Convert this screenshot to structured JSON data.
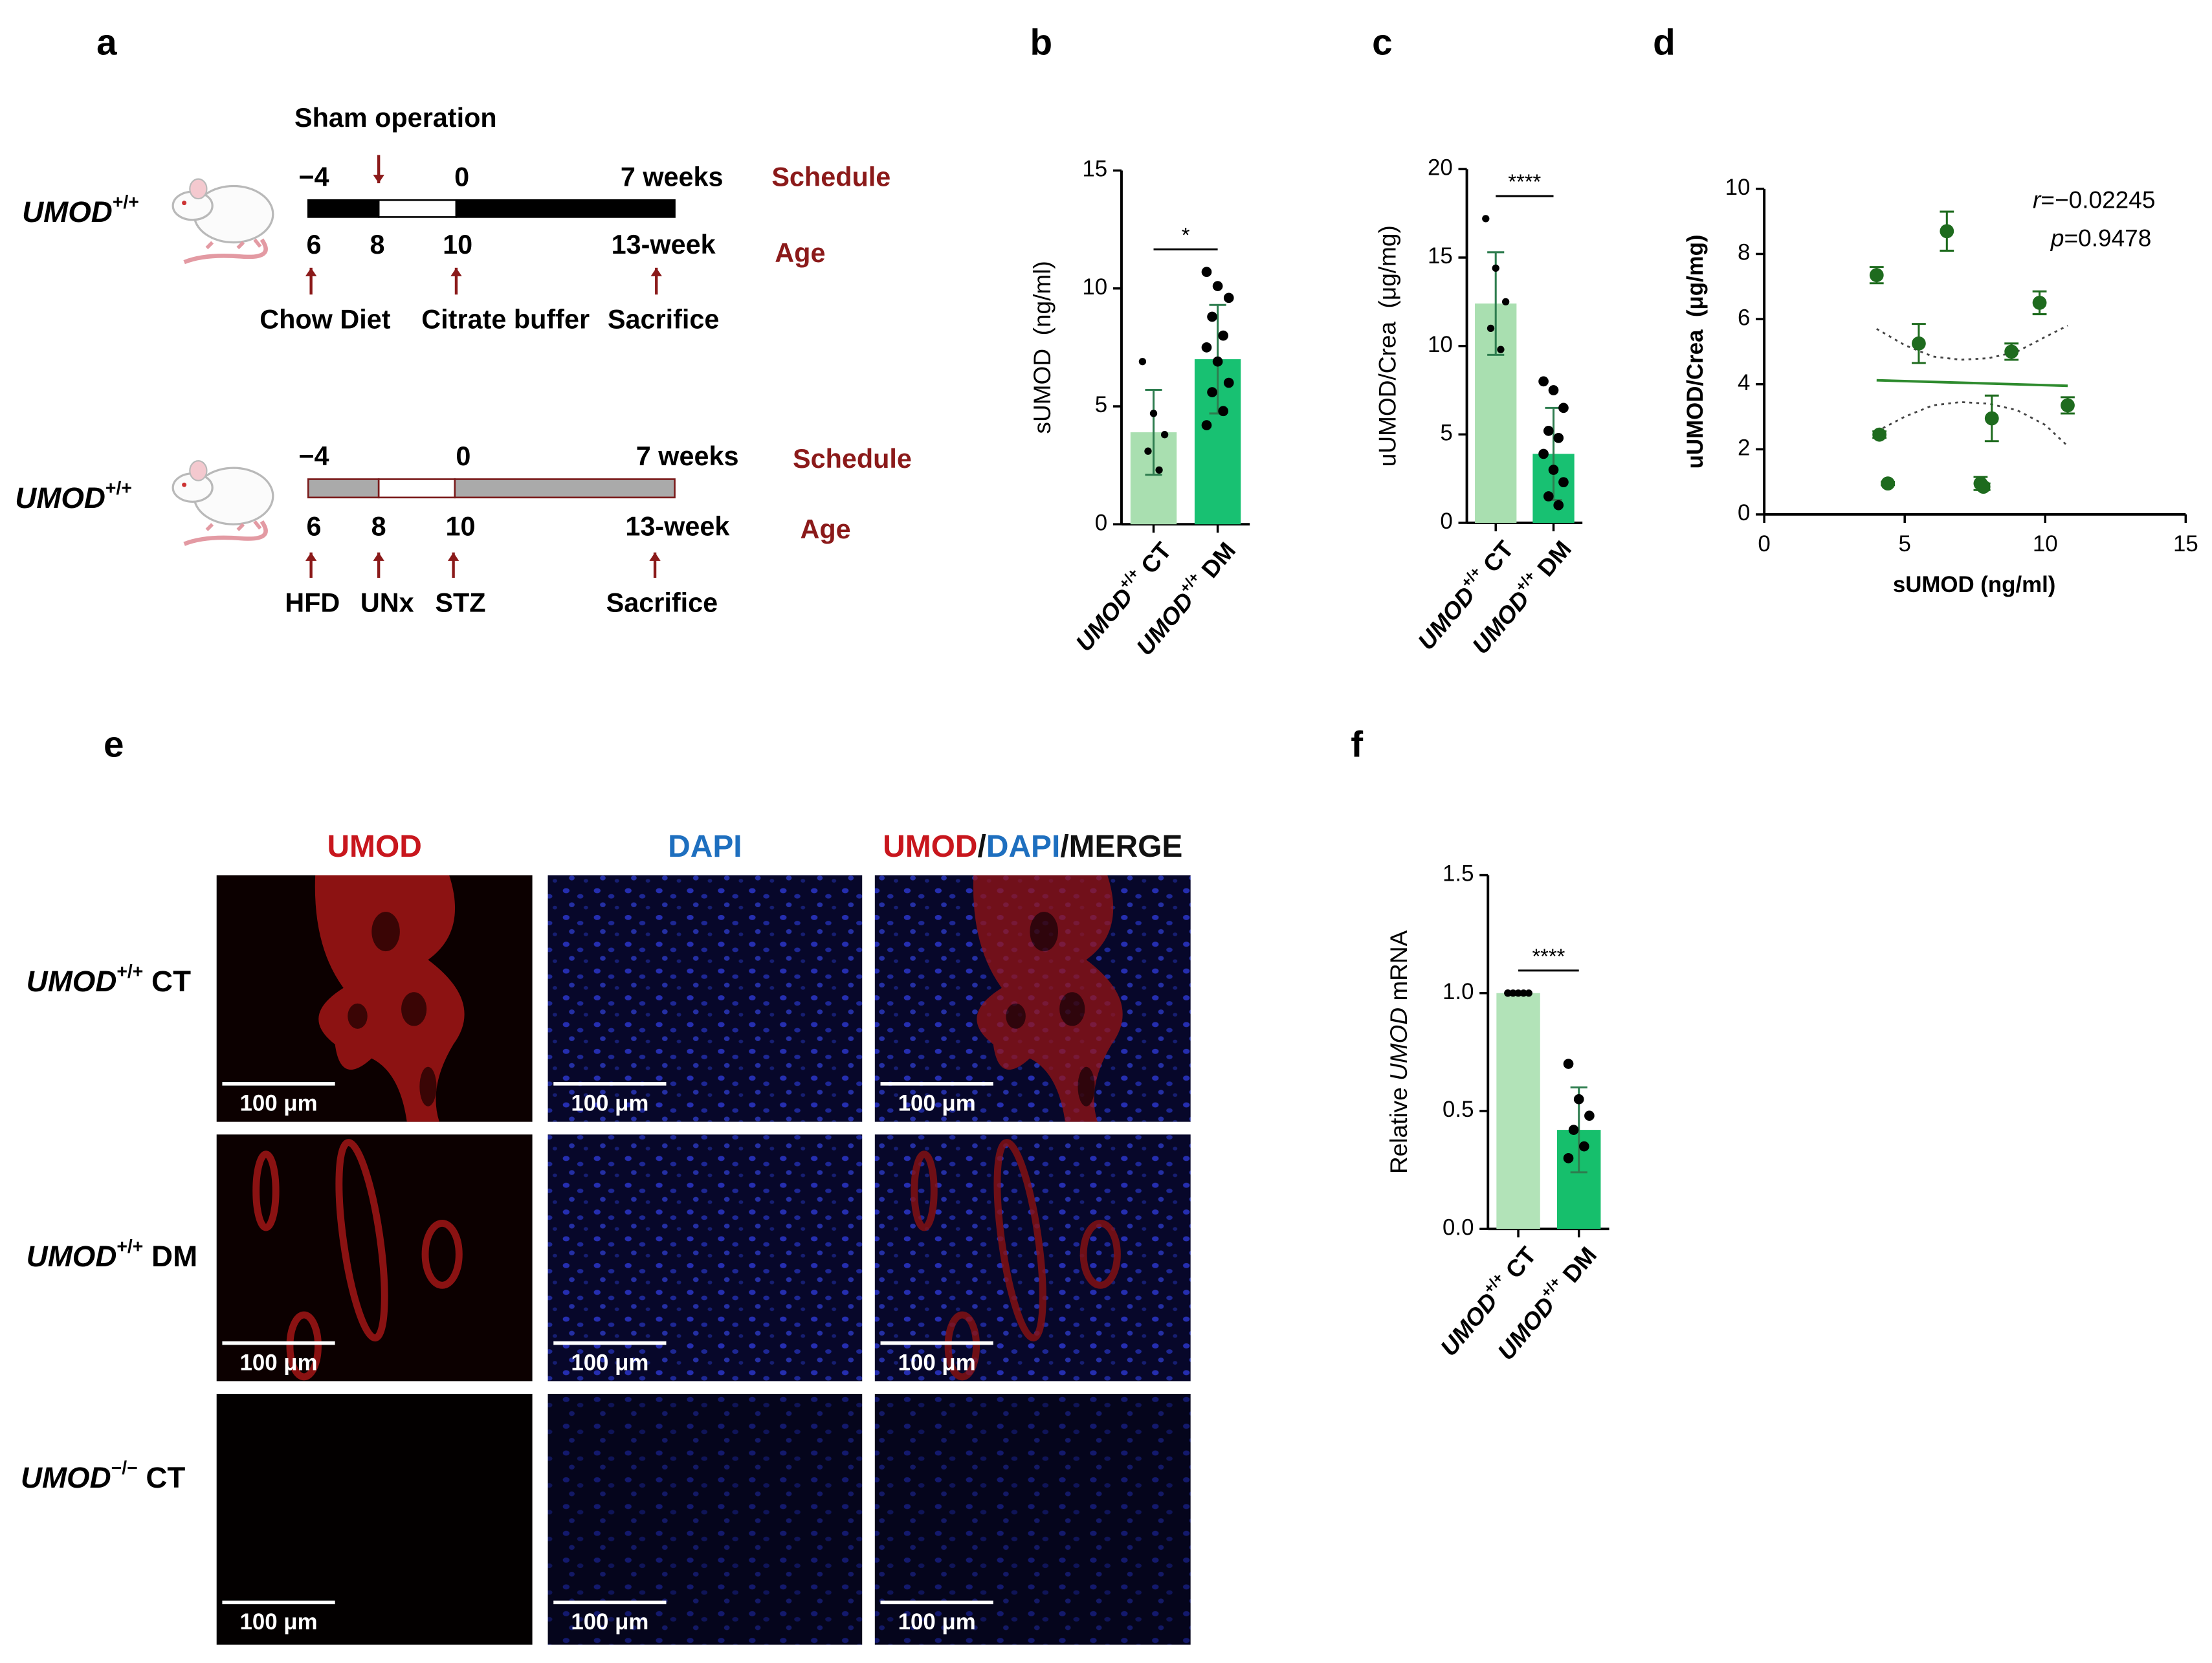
{
  "panel_labels": [
    "a",
    "b",
    "c",
    "d",
    "e",
    "f"
  ],
  "schedules": [
    {
      "genotype": "UMOD+/+",
      "operation": "Sham operation",
      "schedule_ticks": [
        "−4",
        "0",
        "7 weeks"
      ],
      "schedule_label": "Schedule",
      "age_ticks": [
        "6",
        "8",
        "10",
        "13-week"
      ],
      "age_label": "Age",
      "events": [
        "Chow Diet",
        "Citrate buffer",
        "Sacrifice"
      ]
    },
    {
      "genotype": "UMOD+/+",
      "schedule_ticks": [
        "−4",
        "0",
        "7 weeks"
      ],
      "schedule_label": "Schedule",
      "age_ticks": [
        "6",
        "8",
        "10",
        "13-week"
      ],
      "age_label": "Age",
      "events": [
        "HFD",
        "UNx",
        "STZ",
        "Sacrifice"
      ]
    }
  ],
  "chart_data": [
    {
      "type": "bar",
      "ylabel": "sUMOD  (ng/ml)",
      "categories": [
        "UMOD+/+ CT",
        "UMOD+/+ DM"
      ],
      "values": [
        3.9,
        7.0
      ],
      "errors": [
        1.8,
        2.3
      ],
      "points": [
        [
          6.9,
          4.7,
          3.8,
          3.1,
          2.3
        ],
        [
          10.7,
          10.1,
          9.6,
          8.8,
          8.0,
          7.5,
          6.9,
          6.0,
          5.6,
          4.8,
          4.2
        ]
      ],
      "colors": [
        "#a9dfb0",
        "#18c172"
      ],
      "error_color": "#2e7d4f",
      "ylim": [
        0,
        15
      ],
      "yticks": [
        0,
        5,
        10,
        15
      ],
      "significance": "*"
    },
    {
      "type": "bar",
      "ylabel": "uUMOD/Crea  (μg/mg)",
      "categories": [
        "UMOD+/+ CT",
        "UMOD+/+ DM"
      ],
      "values": [
        12.4,
        3.9
      ],
      "errors": [
        2.9,
        2.6
      ],
      "points": [
        [
          17.2,
          14.4,
          12.5,
          11.0,
          9.8
        ],
        [
          8.0,
          7.5,
          6.5,
          5.2,
          4.8,
          3.9,
          3.0,
          2.3,
          1.5,
          1.0
        ]
      ],
      "colors": [
        "#a9dfb0",
        "#18c172"
      ],
      "error_color": "#2e7d4f",
      "ylim": [
        0,
        20
      ],
      "yticks": [
        0,
        5,
        10,
        15,
        20
      ],
      "significance": "****"
    },
    {
      "type": "scatter",
      "xlabel": "sUMOD (ng/ml)",
      "ylabel": "uUMOD/Crea  (μg/mg)",
      "x": [
        4.0,
        5.5,
        6.5,
        8.8,
        9.8,
        10.8,
        8.1,
        7.7,
        7.8,
        4.1,
        4.4
      ],
      "y": [
        7.35,
        5.25,
        8.7,
        5.0,
        6.5,
        3.35,
        2.95,
        0.95,
        0.85,
        2.45,
        0.95
      ],
      "errors": [
        0.25,
        0.6,
        0.6,
        0.25,
        0.35,
        0.25,
        0.7,
        0.2,
        0.1,
        0.1,
        0.05
      ],
      "color": "#1e6b1e",
      "fit": {
        "x": [
          4.0,
          10.8
        ],
        "y": [
          4.12,
          3.95
        ],
        "color": "#2e8b2e"
      },
      "ci_x": [
        4,
        5,
        6,
        7,
        8,
        9,
        10,
        10.8
      ],
      "ci_upper": [
        5.7,
        5.2,
        4.85,
        4.75,
        4.8,
        5.0,
        5.45,
        5.8
      ],
      "ci_lower": [
        2.55,
        3.0,
        3.35,
        3.45,
        3.4,
        3.2,
        2.75,
        2.1
      ],
      "annotations": [
        "r=−0.02245",
        "p=0.9478"
      ],
      "xlim": [
        0,
        15
      ],
      "xticks": [
        0,
        5,
        10,
        15
      ],
      "ylim": [
        0,
        10
      ],
      "yticks": [
        0,
        2,
        4,
        6,
        8,
        10
      ]
    },
    {
      "type": "bar",
      "ylabel": "Relative UMOD mRNA",
      "categories": [
        "UMOD+/+ CT",
        "UMOD+/+ DM"
      ],
      "values": [
        1.0,
        0.42
      ],
      "errors": [
        0,
        0.18
      ],
      "points": [
        [
          1.0,
          1.0,
          1.0,
          1.0,
          1.0,
          1.0
        ],
        [
          0.7,
          0.55,
          0.48,
          0.42,
          0.35,
          0.3
        ]
      ],
      "colors": [
        "#b2e3b8",
        "#16bf6c"
      ],
      "error_color": "#2e7d4f",
      "ylim": [
        0,
        1.5
      ],
      "yticks": [
        {
          "value": 0,
          "label": "0.0"
        },
        {
          "value": 0.5,
          "label": "0.5"
        },
        {
          "value": 1.0,
          "label": "1.0"
        },
        {
          "value": 1.5,
          "label": "1.5"
        }
      ],
      "significance": "****"
    }
  ],
  "microscopy": {
    "columns": [
      [
        "UMOD"
      ],
      [
        "DAPI"
      ],
      [
        "UMOD",
        "/",
        "DAPI",
        "/MERGE"
      ]
    ],
    "rows": [
      "UMOD+/+ CT",
      "UMOD+/+ DM",
      "UMOD−/− CT"
    ],
    "scale_bar": "100 μm"
  }
}
